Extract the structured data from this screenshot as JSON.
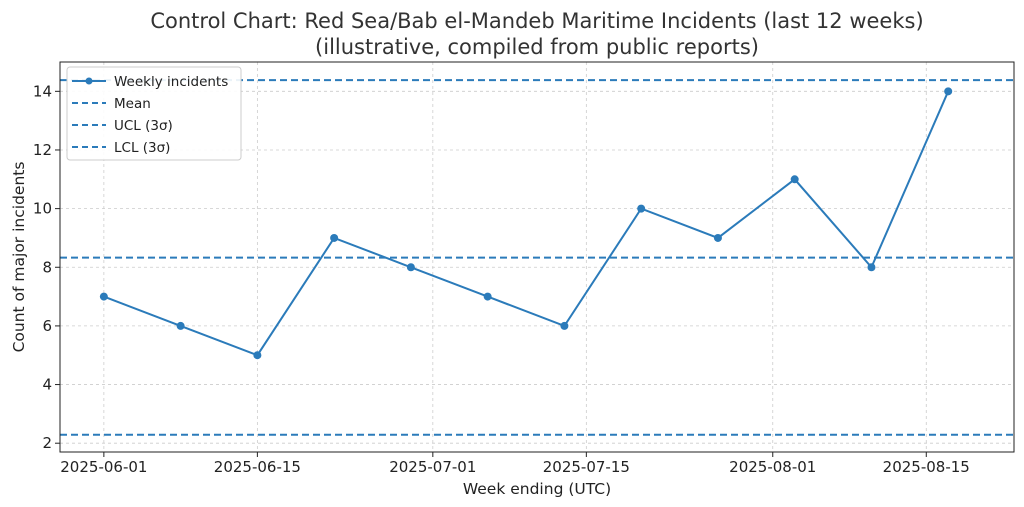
{
  "chart_data": {
    "type": "line",
    "title": "Control Chart: Red Sea/Bab el-Mandeb Maritime Incidents (last 12 weeks)",
    "subtitle": "(illustrative, compiled from public reports)",
    "xlabel": "Week ending (UTC)",
    "ylabel": "Count of major incidents",
    "x": [
      "2025-06-01",
      "2025-06-08",
      "2025-06-15",
      "2025-06-22",
      "2025-06-29",
      "2025-07-06",
      "2025-07-13",
      "2025-07-20",
      "2025-07-27",
      "2025-08-03",
      "2025-08-10",
      "2025-08-17"
    ],
    "xticks": [
      "2025-06-01",
      "2025-06-15",
      "2025-07-01",
      "2025-07-15",
      "2025-08-01",
      "2025-08-15"
    ],
    "xlim": [
      "2025-05-28",
      "2025-08-23"
    ],
    "yticks": [
      2,
      4,
      6,
      8,
      10,
      12,
      14
    ],
    "ylim": [
      1.7,
      15
    ],
    "grid": true,
    "legend_position": "top-left",
    "series": [
      {
        "name": "Weekly incidents",
        "values": [
          7,
          6,
          5,
          9,
          8,
          7,
          6,
          10,
          9,
          11,
          8,
          14
        ],
        "color": "#2b7bba"
      }
    ],
    "reference_lines": [
      {
        "name": "Mean",
        "value": 8.33,
        "color": "#2b7bba"
      },
      {
        "name": "UCL (3σ)",
        "value": 14.38,
        "color": "#2b7bba"
      },
      {
        "name": "LCL (3σ)",
        "value": 2.29,
        "color": "#2b7bba"
      }
    ]
  }
}
